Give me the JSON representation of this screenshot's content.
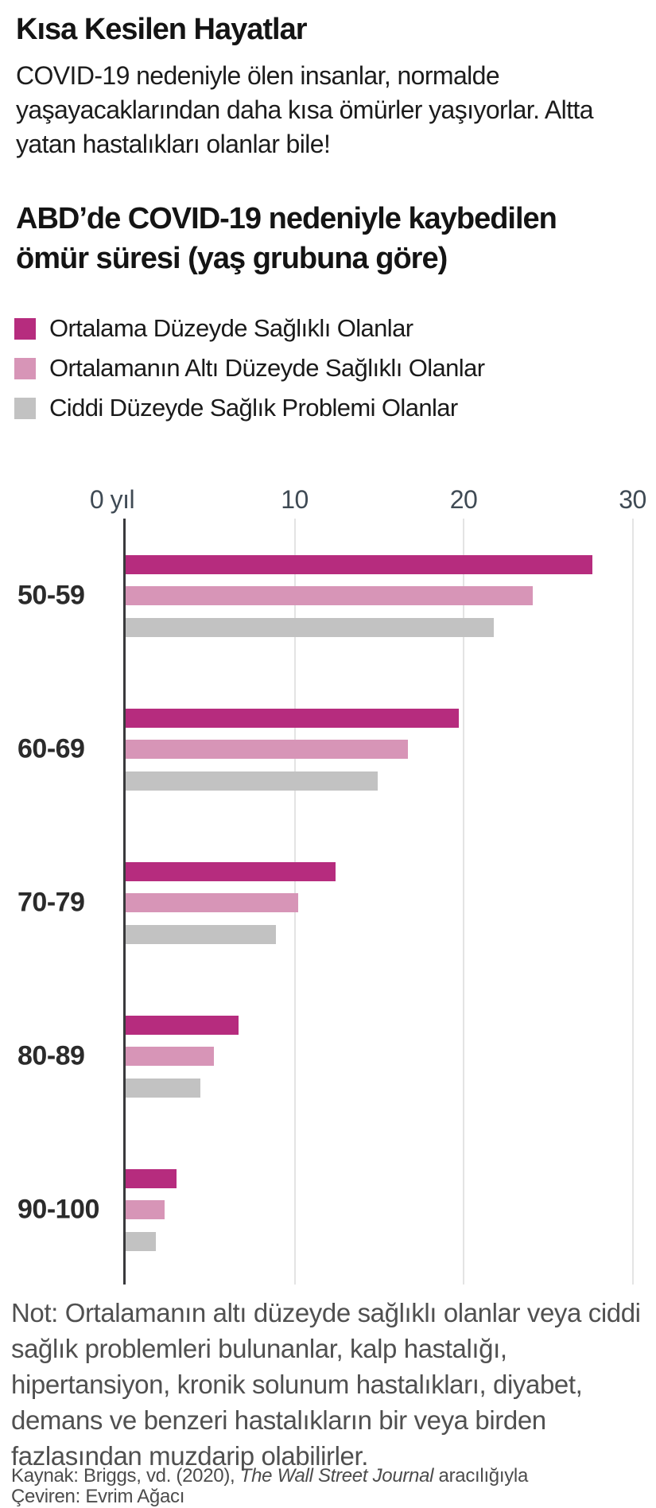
{
  "header": {
    "title": "Kısa Kesilen Hayatlar",
    "subtitle_lines": [
      "COVID-19 nedeniyle ölen insanlar, normalde",
      "yaşayacaklarından daha kısa ömürler yaşıyorlar. Altta",
      "yatan hastalıkları olanlar bile!"
    ]
  },
  "chart_data": {
    "type": "bar",
    "orientation": "horizontal",
    "title": "ABD’de COVID-19 nedeniyle kaybedilen ömür süresi (yaş grubuna göre)",
    "title_lines": [
      "ABD’de COVID-19 nedeniyle kaybedilen",
      "ömür süresi (yaş grubuna göre)"
    ],
    "unit": "yıl",
    "categories": [
      "50-59",
      "60-69",
      "70-79",
      "80-89",
      "90-100"
    ],
    "series": [
      {
        "name": "Ortalama Düzeyde Sağlıklı Olanlar",
        "color": "#b62c7e",
        "values": [
          27.6,
          19.7,
          12.4,
          6.7,
          3.0
        ]
      },
      {
        "name": "Ortalamanın Altı Düzeyde Sağlıklı Olanlar",
        "color": "#d795b7",
        "values": [
          24.1,
          16.7,
          10.2,
          5.2,
          2.3
        ]
      },
      {
        "name": "Ciddi Düzeyde Sağlık Problemi Olanlar",
        "color": "#c2c2c2",
        "values": [
          21.8,
          14.9,
          8.9,
          4.4,
          1.8
        ]
      }
    ],
    "x_axis": {
      "range": [
        0,
        30
      ],
      "ticks": [
        {
          "value": 0,
          "label": "0 yıl"
        },
        {
          "value": 10,
          "label": "10"
        },
        {
          "value": 20,
          "label": "20"
        },
        {
          "value": 30,
          "label": "30"
        }
      ]
    },
    "grid": true,
    "legend_position": "top-left"
  },
  "footer": {
    "note_lines": [
      "Not: Ortalamanın altı düzeyde sağlıklı olanlar veya ciddi",
      "sağlık problemleri bulunanlar, kalp hastalığı,",
      "hipertansiyon, kronik solunum hastalıkları, diyabet,",
      "demans ve benzeri hastalıkların bir veya birden",
      "fazlasından muzdarip olabilirler."
    ],
    "source_prefix": "Kaynak: Briggs, vd. (2020), ",
    "source_italic": "The Wall Street Journal",
    "source_suffix": " aracılığıyla",
    "translator": "Çeviren: Evrim Ağacı"
  }
}
